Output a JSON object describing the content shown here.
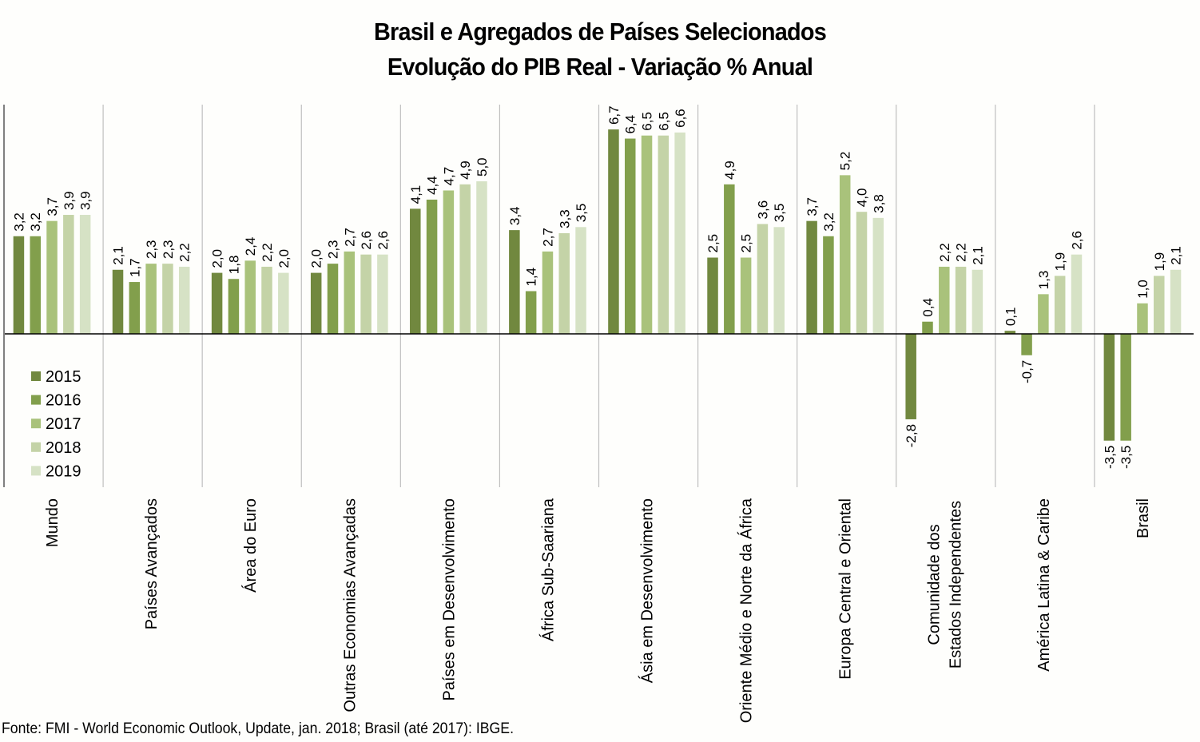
{
  "chart_data": {
    "type": "bar",
    "title": "Brasil e Agregados de Países Selecionados",
    "subtitle": "Evolução do PIB Real - Variação % Anual",
    "xlabel": "",
    "ylabel": "",
    "ylim": [
      -5.0,
      7.4
    ],
    "grid": false,
    "legend_position": "left-bottom",
    "categories": [
      "Mundo",
      "Países Avançados",
      "Área do Euro",
      "Outras Economias Avançadas",
      "Países em Desenvolvimento",
      "África Sub-Saariana",
      "Ásia em Desenvolvimento",
      "Oriente Médio e Norte da África",
      "Europa Central e Oriental",
      "Comunidade dos\nEstados Independentes",
      "América Latina & Caribe",
      "Brasil"
    ],
    "series": [
      {
        "name": "2015",
        "color": "#71883f",
        "values": [
          3.2,
          2.1,
          2.0,
          2.0,
          4.1,
          3.4,
          6.7,
          2.5,
          3.7,
          -2.8,
          0.1,
          -3.5
        ]
      },
      {
        "name": "2016",
        "color": "#829f4c",
        "values": [
          3.2,
          1.7,
          1.8,
          2.3,
          4.4,
          1.4,
          6.4,
          4.9,
          3.2,
          0.4,
          -0.7,
          -3.5
        ]
      },
      {
        "name": "2017",
        "color": "#a9c27b",
        "values": [
          3.7,
          2.3,
          2.4,
          2.7,
          4.7,
          2.7,
          6.5,
          2.5,
          5.2,
          2.2,
          1.3,
          1.0
        ]
      },
      {
        "name": "2018",
        "color": "#c4d3a7",
        "values": [
          3.9,
          2.3,
          2.2,
          2.6,
          4.9,
          3.3,
          6.5,
          3.6,
          4.0,
          2.2,
          1.9,
          1.9
        ]
      },
      {
        "name": "2019",
        "color": "#d6e2c5",
        "values": [
          3.9,
          2.2,
          2.0,
          2.6,
          5.0,
          3.5,
          6.6,
          3.5,
          3.8,
          2.1,
          2.6,
          2.1
        ]
      }
    ]
  },
  "source_note": "Fonte: FMI - World Economic Outlook, Update, jan. 2018; Brasil (até 2017): IBGE."
}
